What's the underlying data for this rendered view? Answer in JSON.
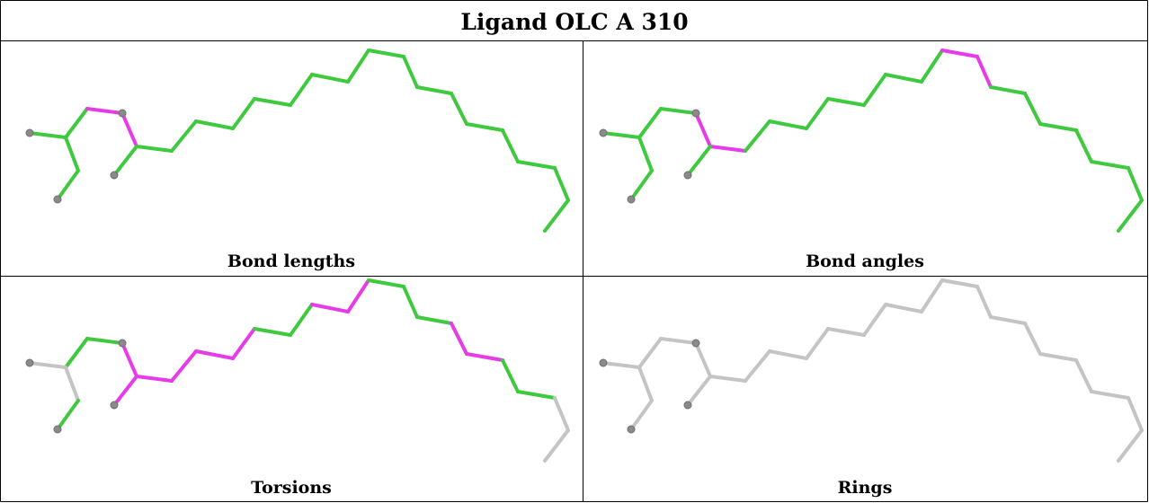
{
  "title": "Ligand OLC A 310",
  "colors": {
    "ok": "#3fc93f",
    "outlier": "#e83be8",
    "none": "#c4c4c4",
    "atom": "#8a8a8a"
  },
  "panels": [
    {
      "caption": "Bond lengths",
      "segments": [
        "g",
        "g",
        "g",
        "g",
        "m",
        "m",
        "g",
        "g",
        "g",
        "g",
        "g",
        "g",
        "g",
        "g",
        "g",
        "g",
        "g",
        "g",
        "g",
        "g",
        "g",
        "g",
        "g",
        "g",
        "g",
        "g",
        "g",
        "g"
      ]
    },
    {
      "caption": "Bond angles",
      "segments": [
        "g",
        "g",
        "g",
        "g",
        "g",
        "m",
        "m",
        "g",
        "g",
        "g",
        "g",
        "g",
        "g",
        "g",
        "g",
        "m",
        "m",
        "g",
        "g",
        "g",
        "g",
        "g",
        "g",
        "g",
        "g",
        "g",
        "g",
        "g"
      ]
    },
    {
      "caption": "Torsions",
      "segments": [
        "n",
        "g",
        "n",
        "g",
        "g",
        "m",
        "m",
        "m",
        "m",
        "m",
        "m",
        "g",
        "g",
        "m",
        "m",
        "g",
        "g",
        "g",
        "m",
        "m",
        "g",
        "g",
        "n",
        "n",
        "g",
        "g",
        "g",
        "n"
      ]
    },
    {
      "caption": "Rings",
      "segments": [
        "n",
        "n",
        "n",
        "n",
        "n",
        "n",
        "n",
        "n",
        "n",
        "n",
        "n",
        "n",
        "n",
        "n",
        "n",
        "n",
        "n",
        "n",
        "n",
        "n",
        "n",
        "n",
        "n",
        "n",
        "n",
        "n",
        "n",
        "n"
      ]
    }
  ]
}
